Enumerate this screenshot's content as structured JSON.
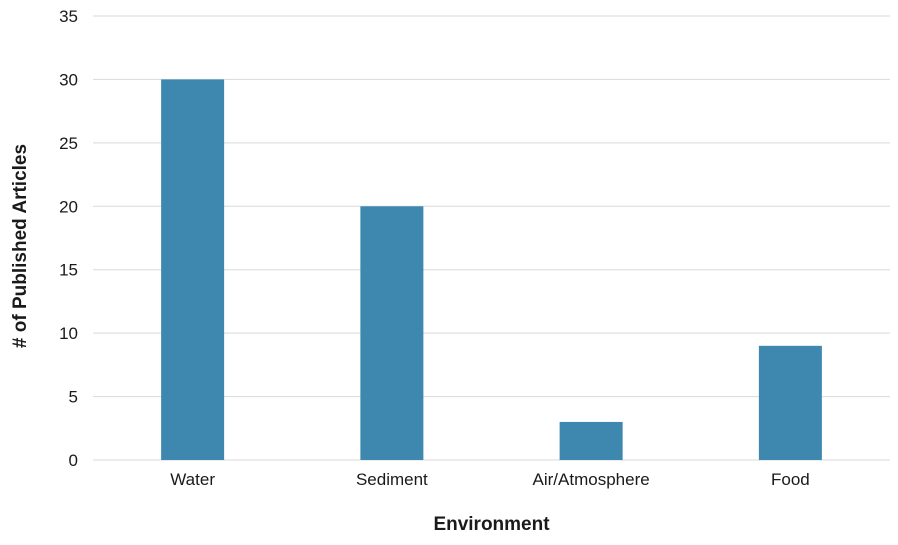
{
  "chart_data": {
    "type": "bar",
    "categories": [
      "Water",
      "Sediment",
      "Air/Atmosphere",
      "Food"
    ],
    "values": [
      30,
      20,
      3,
      9
    ],
    "title": "",
    "xlabel": "Environment",
    "ylabel": "# of Published Articles",
    "ylim": [
      0,
      35
    ],
    "yticks": [
      0,
      5,
      10,
      15,
      20,
      25,
      30,
      35
    ],
    "grid": "horizontal",
    "legend": "none",
    "bar_color": "#3e88b0",
    "grid_color": "#d9d9d9"
  }
}
